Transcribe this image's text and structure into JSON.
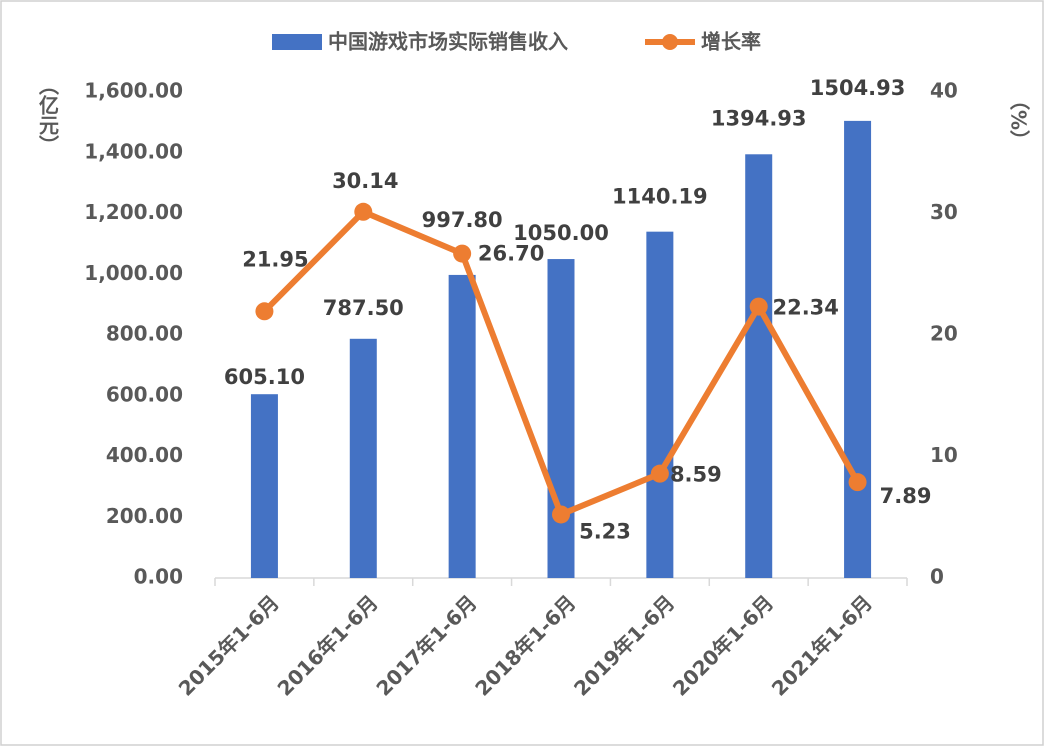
{
  "chart_data": {
    "type": "bar",
    "y_label": "（亿元）",
    "y2_label": "（%）",
    "categories": [
      "2015年1-6月",
      "2016年1-6月",
      "2017年1-6月",
      "2018年1-6月",
      "2019年1-6月",
      "2020年1-6月",
      "2021年1-6月"
    ],
    "series": [
      {
        "name": "中国游戏市场实际销售收入",
        "type": "bar",
        "color": "#4472c4",
        "values": [
          605.1,
          787.5,
          997.8,
          1050,
          1140.19,
          1394.93,
          1504.93
        ],
        "value_labels": [
          "605.10",
          "787.50",
          "997.80",
          "1050.00",
          "1140.19",
          "1394.93",
          "1504.93"
        ]
      },
      {
        "name": "增长率",
        "type": "line",
        "axis": "y2",
        "color": "#ed7d31",
        "values": [
          21.95,
          30.14,
          26.7,
          5.23,
          8.59,
          22.34,
          7.89
        ],
        "value_labels": [
          "21.95",
          "30.14",
          "26.70",
          "5.23",
          "8.59",
          "22.34",
          "7.89"
        ]
      }
    ],
    "ylim": [
      0,
      1600
    ],
    "yticks": [
      {
        "value": 0,
        "label": "0.00"
      },
      {
        "value": 200,
        "label": "200.00"
      },
      {
        "value": 400,
        "label": "400.00"
      },
      {
        "value": 600,
        "label": "600.00"
      },
      {
        "value": 800,
        "label": "800.00"
      },
      {
        "value": 1000,
        "label": "1,000.00"
      },
      {
        "value": 1200,
        "label": "1,200.00"
      },
      {
        "value": 1400,
        "label": "1,400.00"
      },
      {
        "value": 1600,
        "label": "1,600.00"
      }
    ],
    "y2lim": [
      0,
      40
    ],
    "y2ticks": [
      0,
      10,
      20,
      30,
      40
    ],
    "legend": "top",
    "grid": false
  }
}
